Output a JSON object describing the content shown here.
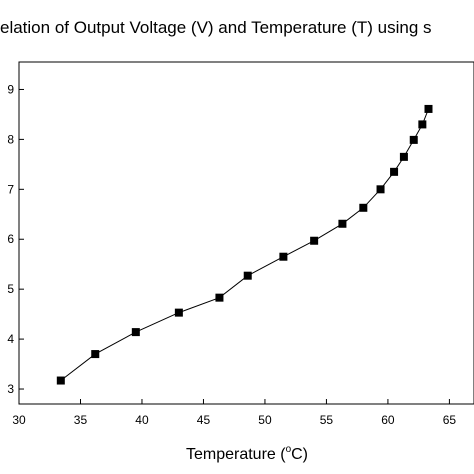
{
  "chart_data": {
    "type": "scatter",
    "title": "elation of Output Voltage (V) and Temperature (T) using s",
    "xlabel": "Temperature (",
    "xlabel_sup": "o",
    "xlabel_unit": "C)",
    "ylabel": "",
    "xlim": [
      30,
      67
    ],
    "ylim": [
      2.7,
      9.55
    ],
    "x_ticks": [
      30,
      35,
      40,
      45,
      50,
      55,
      60,
      65
    ],
    "x_tick_labels": [
      "30",
      "35",
      "40",
      "45",
      "50",
      "55",
      "60",
      "65"
    ],
    "y_ticks": [
      3,
      4,
      5,
      6,
      7,
      8,
      9
    ],
    "y_tick_labels": [
      "3",
      "4",
      "5",
      "6",
      "7",
      "8",
      "9"
    ],
    "grid": false,
    "series": [
      {
        "x": [
          33.4,
          36.2,
          39.5,
          43.0,
          46.3,
          48.6,
          51.5,
          54.0,
          56.3,
          58.0,
          59.4,
          60.5,
          61.3,
          62.1,
          62.8,
          63.3
        ],
        "y": [
          3.17,
          3.7,
          4.14,
          4.53,
          4.83,
          5.27,
          5.65,
          5.97,
          6.31,
          6.63,
          7.0,
          7.35,
          7.65,
          7.99,
          8.3,
          8.61
        ],
        "marker": "square",
        "line": true,
        "color": "#000000"
      }
    ]
  }
}
